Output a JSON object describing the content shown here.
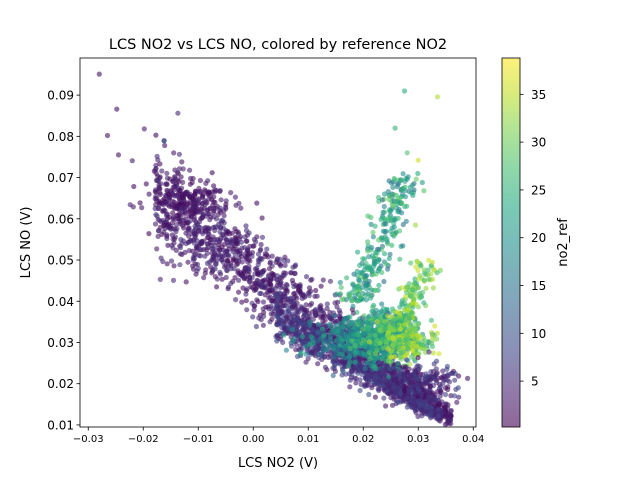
{
  "chart_data": {
    "type": "scatter",
    "title": "LCS NO2 vs LCS NO, colored by reference NO2",
    "xlabel": "LCS NO2 (V)",
    "ylabel": "LCS NO (V)",
    "xlim": [
      -0.0315,
      0.0405
    ],
    "ylim": [
      0.0095,
      0.099
    ],
    "x_ticks": [
      -0.03,
      -0.02,
      -0.01,
      0.0,
      0.01,
      0.02,
      0.03,
      0.04
    ],
    "x_tick_labels": [
      "−0.03",
      "−0.02",
      "−0.01",
      "0.00",
      "0.01",
      "0.02",
      "0.03",
      "0.04"
    ],
    "y_ticks": [
      0.01,
      0.02,
      0.03,
      0.04,
      0.05,
      0.06,
      0.07,
      0.08,
      0.09
    ],
    "y_tick_labels": [
      "0.01",
      "0.02",
      "0.03",
      "0.04",
      "0.05",
      "0.06",
      "0.07",
      "0.08",
      "0.09"
    ],
    "grid": false,
    "colormap": "viridis",
    "marker_alpha": 0.6,
    "colorbar": {
      "label": "no2_ref",
      "range": [
        0.2,
        38.8
      ],
      "ticks": [
        5,
        10,
        15,
        20,
        25,
        30,
        35
      ],
      "tick_labels": [
        "5",
        "10",
        "15",
        "20",
        "25",
        "30",
        "35"
      ]
    },
    "points": [
      [
        -0.028,
        0.0951,
        2
      ],
      [
        -0.0248,
        0.0866,
        2
      ],
      [
        -0.0265,
        0.0802,
        2
      ],
      [
        -0.0198,
        0.0818,
        3
      ],
      [
        -0.022,
        0.0741,
        3
      ],
      [
        -0.0162,
        0.0789,
        12
      ],
      [
        -0.0245,
        0.0755,
        2
      ],
      [
        -0.013,
        0.0738,
        2
      ],
      [
        0.0275,
        0.091,
        24
      ],
      [
        0.0335,
        0.0896,
        34
      ],
      [
        0.0258,
        0.082,
        25
      ],
      [
        0.028,
        0.076,
        28
      ],
      [
        0.03,
        0.0742,
        36
      ],
      [
        0.0295,
        0.0585,
        33
      ],
      [
        0.033,
        0.034,
        36
      ],
      [
        0.03,
        0.031,
        34
      ],
      [
        0.035,
        0.021,
        5
      ],
      [
        0.036,
        0.0135,
        3
      ],
      [
        0.037,
        0.0155,
        3
      ],
      [
        0.034,
        0.017,
        4
      ]
    ],
    "clusters": [
      {
        "kind": "band",
        "count": 1500,
        "x_range": [
          -0.018,
          0.036
        ],
        "y_at_x0": 0.0472,
        "slope": -0.98,
        "spread_min": 0.0014,
        "spread_max": 0.0068,
        "color": [
          1,
          6
        ]
      },
      {
        "kind": "band",
        "count": 800,
        "x_range": [
          0.004,
          0.034
        ],
        "y_at_x0": 0.0398,
        "slope": -0.82,
        "spread_min": 0.0006,
        "spread_max": 0.0032,
        "color": [
          3,
          9
        ]
      },
      {
        "kind": "blob",
        "count": 480,
        "center": [
          0.02,
          0.0305
        ],
        "sd": [
          0.0045,
          0.0028
        ],
        "color": [
          12,
          24
        ]
      },
      {
        "kind": "blob",
        "count": 320,
        "center": [
          0.024,
          0.0318
        ],
        "sd": [
          0.003,
          0.003
        ],
        "color": [
          18,
          30
        ]
      },
      {
        "kind": "arm",
        "count": 260,
        "x_range": [
          0.0185,
          0.0275
        ],
        "y_range": [
          0.04,
          0.071
        ],
        "sd": 0.0017,
        "color": [
          14,
          30
        ]
      },
      {
        "kind": "arm",
        "count": 170,
        "x_range": [
          0.0255,
          0.0315
        ],
        "y_range": [
          0.033,
          0.05
        ],
        "sd": 0.0014,
        "color": [
          24,
          36
        ]
      },
      {
        "kind": "blob",
        "count": 150,
        "center": [
          0.028,
          0.03
        ],
        "sd": [
          0.0022,
          0.0018
        ],
        "color": [
          26,
          37
        ]
      },
      {
        "kind": "blob",
        "count": 220,
        "center": [
          0.03,
          0.0205
        ],
        "sd": [
          0.0035,
          0.0022
        ],
        "color": [
          1,
          9
        ]
      },
      {
        "kind": "blob",
        "count": 180,
        "center": [
          -0.012,
          0.064
        ],
        "sd": [
          0.0035,
          0.003
        ],
        "color": [
          1,
          4
        ]
      }
    ]
  }
}
